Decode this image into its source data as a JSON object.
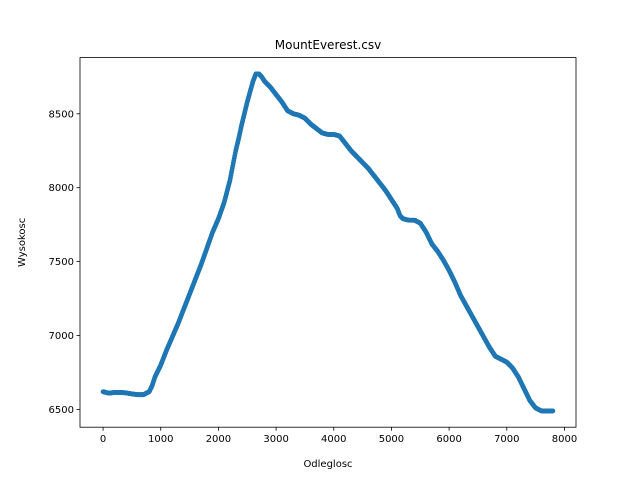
{
  "chart_data": {
    "type": "scatter",
    "title": "MountEverest.csv",
    "xlabel": "Odleglosc",
    "ylabel": "Wysokosc",
    "xlim": [
      -400,
      8200
    ],
    "ylim": [
      6380,
      8880
    ],
    "xticks": [
      0,
      1000,
      2000,
      3000,
      4000,
      5000,
      6000,
      7000,
      8000
    ],
    "yticks": [
      6500,
      7000,
      7500,
      8000,
      8500
    ],
    "grid": false,
    "legend": "none",
    "marker_color": "#1f77b4",
    "series": [
      {
        "x": [
          0,
          100,
          200,
          300,
          400,
          500,
          600,
          700,
          800,
          850,
          900,
          1000,
          1100,
          1200,
          1300,
          1400,
          1500,
          1600,
          1700,
          1800,
          1900,
          2000,
          2100,
          2200,
          2250,
          2300,
          2350,
          2400,
          2450,
          2500,
          2550,
          2600,
          2650,
          2700,
          2750,
          2800,
          2900,
          3000,
          3100,
          3200,
          3300,
          3400,
          3500,
          3600,
          3700,
          3800,
          3900,
          4000,
          4100,
          4200,
          4300,
          4400,
          4500,
          4600,
          4700,
          4800,
          4900,
          5000,
          5100,
          5150,
          5200,
          5300,
          5400,
          5500,
          5600,
          5700,
          5800,
          5900,
          6000,
          6100,
          6200,
          6300,
          6400,
          6500,
          6600,
          6700,
          6800,
          6900,
          7000,
          7100,
          7200,
          7300,
          7400,
          7500,
          7600,
          7700,
          7800
        ],
        "y": [
          6620,
          6610,
          6615,
          6615,
          6612,
          6605,
          6600,
          6600,
          6620,
          6660,
          6720,
          6800,
          6900,
          6990,
          7080,
          7180,
          7280,
          7380,
          7480,
          7590,
          7700,
          7790,
          7900,
          8050,
          8150,
          8250,
          8330,
          8420,
          8500,
          8580,
          8650,
          8720,
          8770,
          8770,
          8750,
          8720,
          8680,
          8630,
          8580,
          8520,
          8500,
          8490,
          8470,
          8430,
          8400,
          8370,
          8360,
          8360,
          8350,
          8300,
          8250,
          8210,
          8170,
          8130,
          8080,
          8030,
          7980,
          7920,
          7860,
          7810,
          7790,
          7780,
          7780,
          7760,
          7700,
          7620,
          7570,
          7510,
          7440,
          7360,
          7270,
          7200,
          7130,
          7060,
          6990,
          6920,
          6860,
          6840,
          6820,
          6780,
          6720,
          6640,
          6560,
          6510,
          6490,
          6490,
          6490
        ]
      }
    ]
  }
}
